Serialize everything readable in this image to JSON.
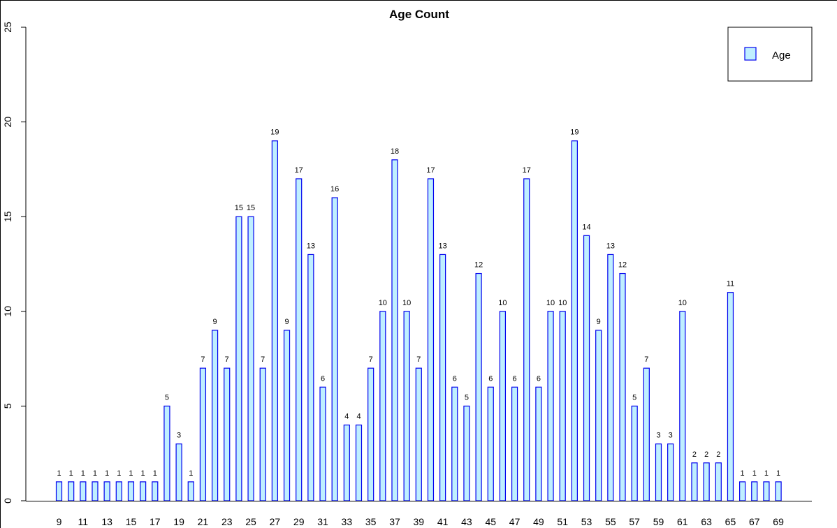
{
  "chart_data": {
    "type": "bar",
    "title": "Age Count",
    "xlabel": "",
    "ylabel": "",
    "ylim": [
      0,
      25
    ],
    "yticks": [
      0,
      5,
      10,
      15,
      20,
      25
    ],
    "legend": {
      "position": "top-right",
      "label": "Age"
    },
    "grid": false,
    "colors": {
      "bar_fill": "#bfefff",
      "bar_stroke": "#0000ee"
    },
    "categories": [
      "9",
      "10",
      "11",
      "12",
      "13",
      "14",
      "15",
      "16",
      "17",
      "18",
      "19",
      "20",
      "21",
      "22",
      "23",
      "24",
      "25",
      "26",
      "27",
      "28",
      "29",
      "30",
      "31",
      "32",
      "33",
      "34",
      "35",
      "36",
      "37",
      "38",
      "39",
      "40",
      "41",
      "42",
      "43",
      "44",
      "45",
      "46",
      "47",
      "48",
      "49",
      "50",
      "51",
      "52",
      "53",
      "54",
      "55",
      "56",
      "57",
      "58",
      "59",
      "60",
      "61",
      "62",
      "63",
      "64",
      "65",
      "66",
      "67",
      "68",
      "69"
    ],
    "values": [
      1,
      1,
      1,
      1,
      1,
      1,
      1,
      1,
      1,
      5,
      3,
      1,
      7,
      9,
      7,
      15,
      15,
      7,
      19,
      9,
      17,
      13,
      6,
      16,
      4,
      4,
      7,
      10,
      18,
      10,
      7,
      17,
      13,
      6,
      5,
      12,
      6,
      10,
      6,
      17,
      6,
      10,
      10,
      19,
      14,
      9,
      13,
      12,
      5,
      7,
      3,
      3,
      10,
      2,
      2,
      2,
      11,
      1,
      1,
      1,
      1
    ],
    "xtick_labels": [
      "9",
      "11",
      "13",
      "15",
      "17",
      "19",
      "21",
      "23",
      "25",
      "27",
      "29",
      "31",
      "33",
      "35",
      "37",
      "39",
      "41",
      "43",
      "45",
      "47",
      "49",
      "51",
      "53",
      "55",
      "57",
      "59",
      "61",
      "63",
      "65",
      "67",
      "69"
    ]
  }
}
